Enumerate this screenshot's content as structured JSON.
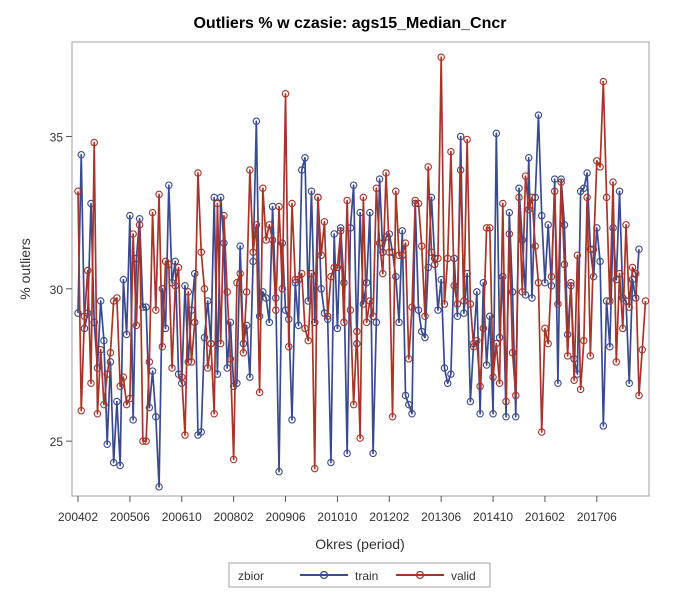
{
  "chart_data": {
    "type": "line",
    "title": "Outliers % w czasie: ags15_Median_Cncr",
    "xlabel": "Okres (period)",
    "ylabel": "% outliers",
    "x_tick_labels": [
      "200402",
      "200506",
      "200610",
      "200802",
      "200906",
      "201010",
      "201202",
      "201306",
      "201410",
      "201602",
      "201706"
    ],
    "y_ticks": [
      25,
      30,
      35
    ],
    "ylim": [
      23.2,
      38.1
    ],
    "x_start": "200402",
    "n_periods": 174,
    "marker": "circle",
    "legend": {
      "title": "zbior",
      "position": "bottom-center",
      "entries": [
        "train",
        "valid"
      ]
    },
    "series": [
      {
        "name": "train",
        "color": "#3a4a8f",
        "values": [
          29.2,
          34.4,
          28.7,
          29.2,
          32.8,
          28.9,
          27.4,
          29.6,
          28.3,
          24.9,
          27.6,
          24.3,
          26.3,
          24.2,
          30.3,
          28.5,
          32.4,
          25.7,
          31.0,
          32.3,
          29.4,
          29.4,
          26.1,
          27.3,
          25.8,
          23.5,
          30.0,
          28.7,
          33.4,
          30.2,
          30.9,
          27.2,
          26.9,
          30.1,
          27.6,
          29.3,
          30.5,
          25.2,
          25.3,
          28.4,
          29.6,
          28.2,
          33.0,
          27.2,
          33.0,
          31.5,
          27.4,
          28.9,
          26.8,
          26.9,
          31.4,
          28.2,
          28.8,
          27.1,
          30.9,
          35.5,
          29.1,
          29.9,
          29.7,
          28.9,
          32.7,
          29.7,
          24.0,
          31.5,
          29.3,
          29.0,
          25.7,
          30.2,
          28.8,
          33.9,
          34.3,
          29.6,
          33.2,
          28.9,
          33.0,
          30.0,
          29.2,
          29.0,
          24.3,
          31.8,
          28.7,
          32.0,
          30.2,
          24.6,
          32.0,
          33.4,
          28.2,
          32.5,
          29.5,
          30.2,
          32.5,
          24.6,
          28.9,
          33.6,
          31.2,
          31.7,
          31.8,
          31.2,
          30.4,
          28.9,
          31.9,
          26.5,
          26.2,
          25.9,
          32.8,
          29.3,
          28.6,
          28.4,
          30.7,
          33.0,
          31.0,
          29.3,
          30.3,
          27.4,
          26.9,
          27.2,
          31.0,
          29.1,
          35.0,
          29.2,
          30.5,
          26.3,
          28.2,
          29.9,
          25.9,
          30.2,
          27.5,
          29.1,
          25.9,
          35.1,
          28.4,
          30.4,
          25.8,
          32.5,
          29.9,
          25.8,
          33.3,
          31.6,
          29.8,
          34.3,
          29.7,
          33.0,
          35.7,
          32.4,
          30.2,
          32.1,
          30.1,
          33.6,
          26.9,
          33.6,
          32.1,
          28.5,
          30.1,
          27.7,
          27.2,
          33.2,
          33.3,
          33.8,
          31.3,
          30.4,
          32.0,
          30.9,
          25.5,
          29.6,
          28.1,
          32.0,
          30.3,
          33.2,
          29.7,
          29.6,
          26.9,
          30.3,
          29.7,
          31.3
        ]
      },
      {
        "name": "valid",
        "color": "#a8342a",
        "values": [
          33.2,
          26.0,
          29.1,
          30.6,
          26.9,
          34.8,
          25.9,
          28.0,
          26.2,
          27.2,
          27.9,
          29.6,
          29.7,
          26.8,
          27.1,
          26.2,
          26.4,
          31.8,
          28.8,
          32.1,
          25.0,
          25.0,
          27.6,
          32.5,
          29.3,
          33.1,
          28.1,
          30.9,
          30.8,
          27.4,
          30.1,
          30.7,
          27.1,
          25.2,
          29.9,
          27.6,
          28.9,
          33.8,
          31.2,
          30.0,
          27.4,
          28.2,
          25.9,
          32.8,
          28.2,
          32.4,
          29.9,
          27.7,
          24.4,
          30.2,
          30.5,
          27.9,
          29.9,
          33.9,
          31.2,
          32.1,
          26.6,
          33.3,
          31.6,
          32.1,
          31.6,
          29.3,
          32.7,
          30.0,
          36.4,
          28.1,
          32.8,
          30.3,
          30.3,
          30.5,
          28.7,
          28.3,
          30.5,
          24.1,
          33.0,
          31.1,
          32.2,
          29.1,
          30.4,
          30.7,
          30.7,
          31.9,
          28.9,
          32.9,
          29.3,
          26.2,
          28.6,
          25.1,
          33.0,
          28.9,
          29.6,
          29.1,
          33.3,
          31.5,
          30.5,
          33.8,
          31.2,
          25.8,
          33.2,
          31.1,
          31.1,
          31.5,
          27.7,
          29.4,
          32.9,
          32.8,
          31.4,
          29.1,
          34.0,
          31.2,
          30.8,
          31.0,
          37.6,
          29.5,
          31.0,
          34.5,
          30.1,
          29.5,
          33.9,
          29.6,
          34.9,
          29.5,
          28.1,
          28.3,
          26.8,
          28.7,
          32.0,
          32.0,
          27.1,
          28.2,
          26.9,
          32.8,
          26.3,
          31.8,
          27.9,
          26.5,
          33.0,
          29.9,
          33.7,
          32.6,
          33.0,
          31.4,
          30.2,
          25.3,
          28.7,
          28.2,
          30.4,
          33.2,
          29.5,
          33.5,
          30.8,
          27.8,
          30.2,
          27.0,
          31.1,
          26.7,
          28.3,
          33.0,
          27.8,
          31.3,
          34.2,
          34.0,
          36.8,
          33.0,
          29.6,
          33.5,
          27.6,
          30.5,
          28.7,
          32.1,
          29.4,
          30.7,
          30.5,
          26.5,
          28.0,
          29.6
        ]
      }
    ]
  }
}
